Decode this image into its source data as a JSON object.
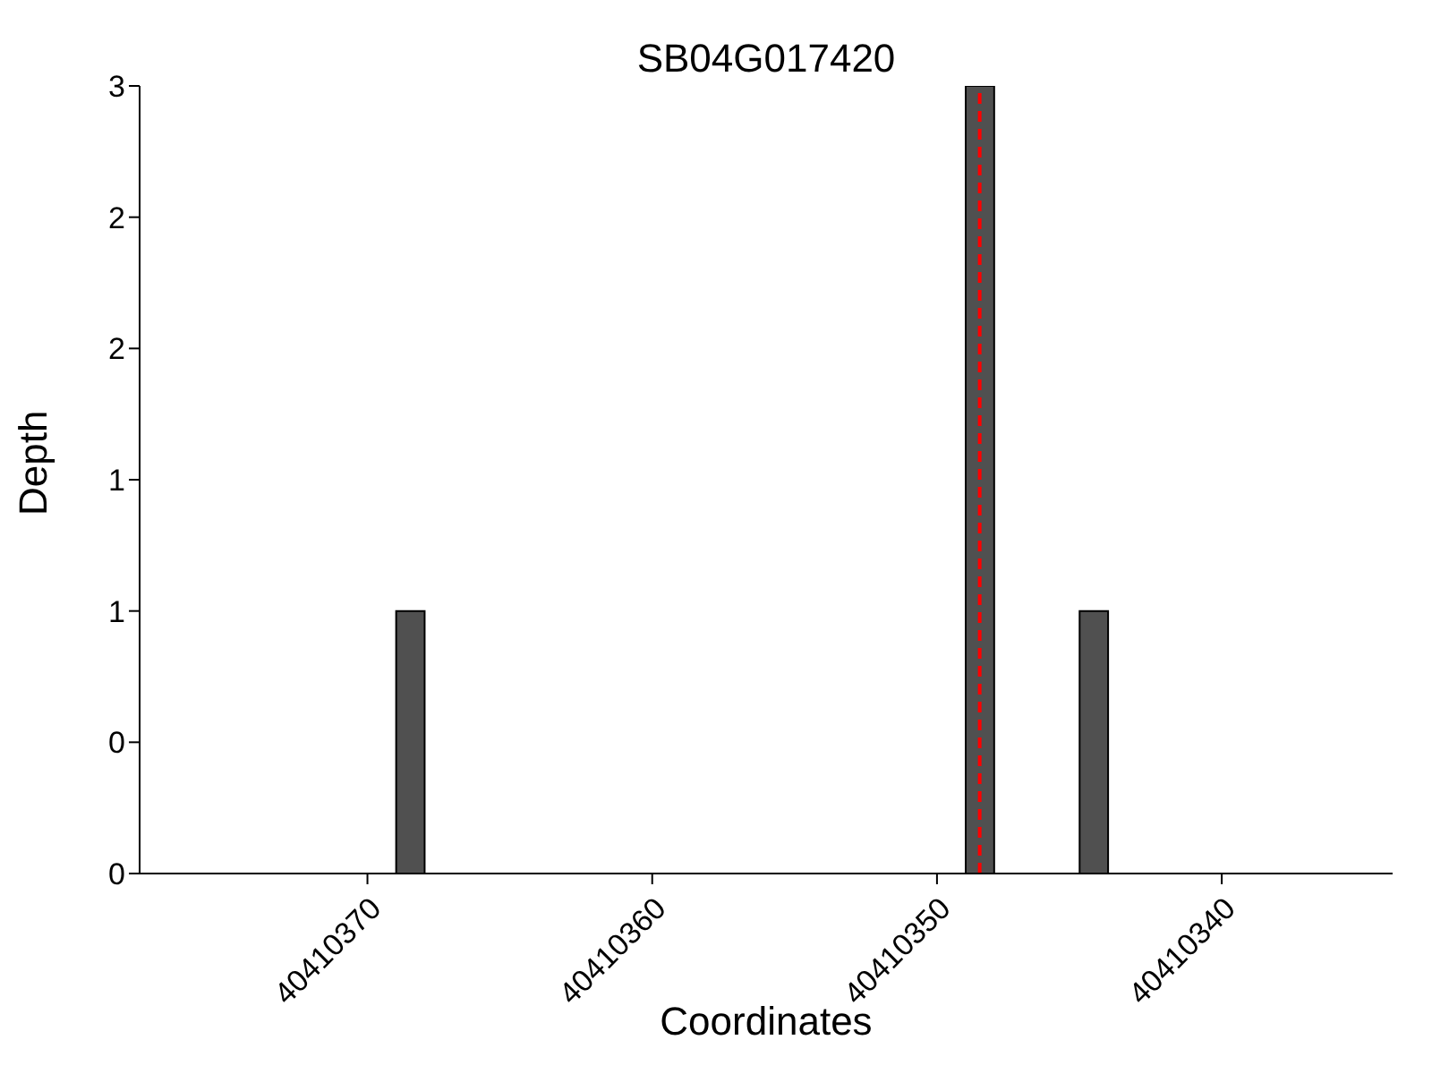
{
  "chart_data": {
    "type": "bar",
    "title": "SB04G017420",
    "xlabel": "Coordinates",
    "ylabel": "Depth",
    "x": [
      40410368.5,
      40410348.5,
      40410344.5
    ],
    "values": [
      1,
      3,
      1
    ],
    "color": "#505050",
    "xlim": [
      40410378,
      40410334
    ],
    "xticks": [
      40410370,
      40410360,
      40410350,
      40410340
    ],
    "ylim": [
      0,
      3
    ],
    "yticks": [
      0,
      {
        "value": 0.5,
        "label": "0"
      },
      1,
      {
        "value": 1.5,
        "label": "1"
      },
      2,
      {
        "value": 2.5,
        "label": "2"
      },
      3
    ],
    "ref_lines": [
      {
        "axis": "x",
        "value": 40410348.5,
        "color": "#ff0000",
        "line_style": "dashed"
      }
    ],
    "grid": false,
    "legend": false
  }
}
